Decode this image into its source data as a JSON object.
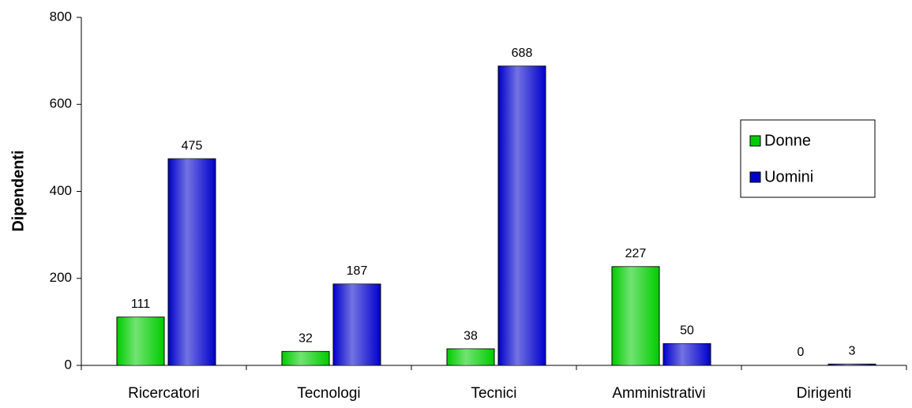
{
  "chart_data": {
    "type": "bar",
    "y_label": "Dipendenti",
    "categories": [
      "Ricercatori",
      "Tecnologi",
      "Tecnici",
      "Amministrativi",
      "Dirigenti"
    ],
    "series": [
      {
        "name": "Donne",
        "color": "#00cc00",
        "values": [
          111,
          32,
          38,
          227,
          0
        ]
      },
      {
        "name": "Uomini",
        "color": "#0000cc",
        "values": [
          475,
          187,
          688,
          50,
          3
        ]
      }
    ],
    "ylim": [
      0,
      800
    ],
    "yticks": [
      0,
      200,
      400,
      600,
      800
    ],
    "legend": "right"
  }
}
